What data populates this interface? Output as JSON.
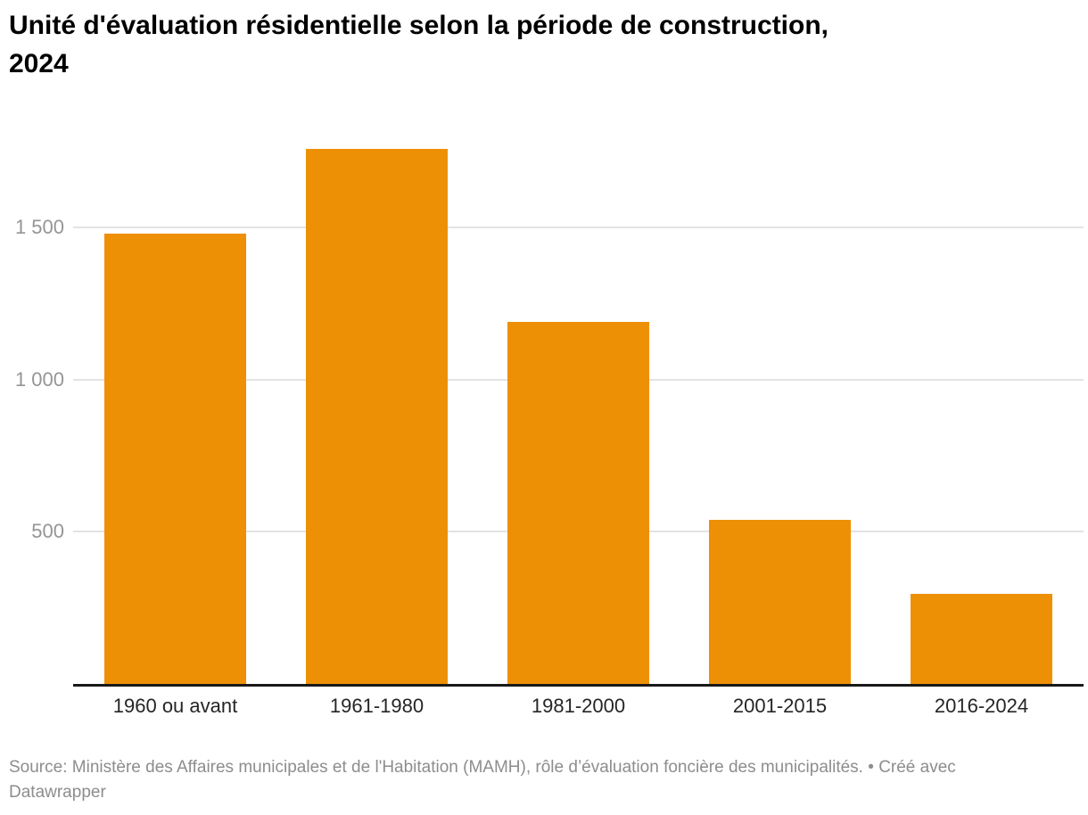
{
  "header": {
    "title": "Unité d'évaluation résidentielle selon la période de construction, 2024"
  },
  "chart_data": {
    "type": "bar",
    "title": "Unité d'évaluation résidentielle selon la période de construction, 2024",
    "categories": [
      "1960 ou avant",
      "1961-1980",
      "1981-2000",
      "2001-2015",
      "2016-2024"
    ],
    "values": [
      1480,
      1760,
      1190,
      540,
      295
    ],
    "xlabel": "",
    "ylabel": "",
    "ylim": [
      0,
      1800
    ],
    "yticks": [
      500,
      1000,
      1500
    ],
    "ytick_labels": [
      "500",
      "1 000",
      "1 500"
    ],
    "grid": true,
    "legend_position": "none",
    "colors": {
      "bar": "#ED9005",
      "gridline": "#e3e3e3",
      "axis_line": "#1a1a1a",
      "y_tick_text": "#959595",
      "x_tick_text": "#252525",
      "title_text": "#000000",
      "footer_text": "#8d8d8d"
    }
  },
  "footer": {
    "source_prefix": "Source:",
    "source_text": "Ministère des Affaires municipales et de l'Habitation (MAMH), rôle d’évaluation foncière des municipalités.",
    "separator": "•",
    "credit": "Créé avec Datawrapper"
  }
}
